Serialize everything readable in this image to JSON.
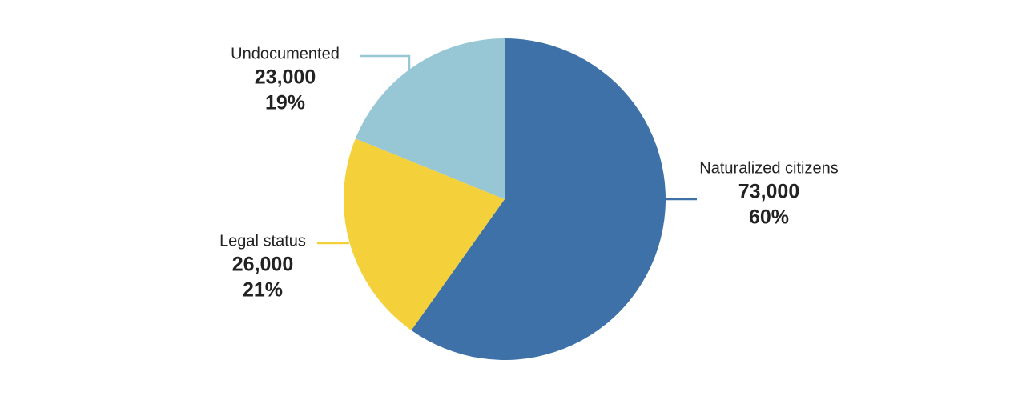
{
  "chart_data": {
    "type": "pie",
    "categories": [
      "Naturalized citizens",
      "Legal status",
      "Undocumented"
    ],
    "values": [
      73000,
      26000,
      23000
    ],
    "value_labels": [
      "73,000",
      "26,000",
      "23,000"
    ],
    "percent_labels": [
      "60%",
      "21%",
      "19%"
    ],
    "colors": [
      "#3d71a8",
      "#f4d03a",
      "#97c6d4"
    ]
  }
}
